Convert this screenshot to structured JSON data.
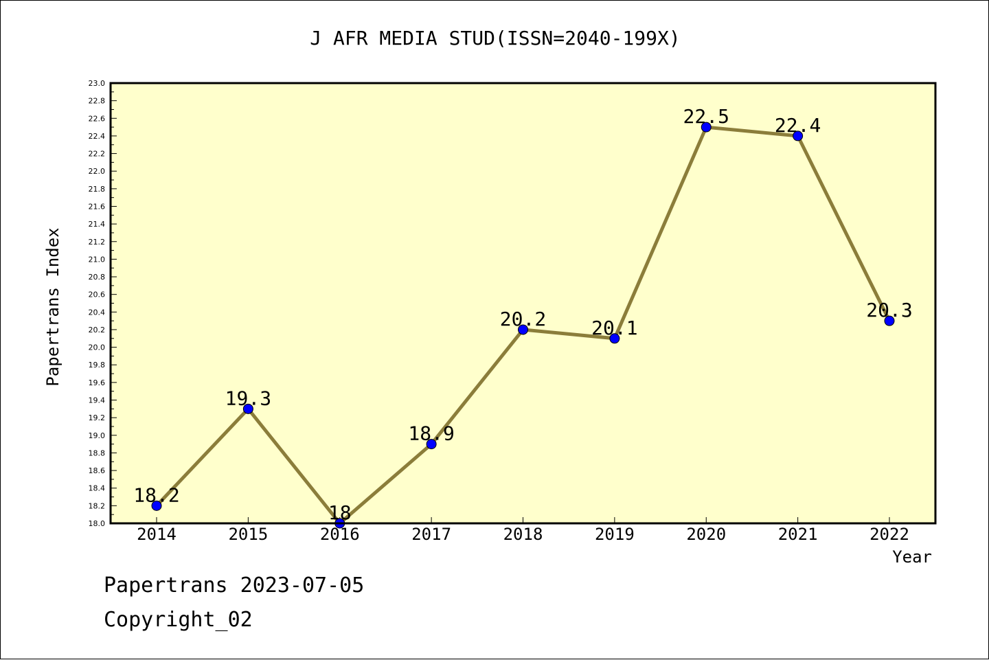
{
  "chart_data": {
    "type": "line",
    "title": "J AFR MEDIA STUD(ISSN=2040-199X)",
    "xlabel": "Year",
    "ylabel": "Papertrans Index",
    "categories": [
      "2014",
      "2015",
      "2016",
      "2017",
      "2018",
      "2019",
      "2020",
      "2021",
      "2022"
    ],
    "values": [
      18.2,
      19.3,
      18.0,
      18.9,
      20.2,
      20.1,
      22.5,
      22.4,
      20.3
    ],
    "data_labels": [
      "18.2",
      "19.3",
      "18",
      "18.9",
      "20.2",
      "20.1",
      "22.5",
      "22.4",
      "20.3"
    ],
    "ylim": [
      18.0,
      23.0
    ],
    "y_ticks": [
      "18.0",
      "18.2",
      "18.4",
      "18.6",
      "18.8",
      "19.0",
      "19.2",
      "19.4",
      "19.6",
      "19.8",
      "20.0",
      "20.2",
      "20.4",
      "20.6",
      "20.8",
      "21.0",
      "21.2",
      "21.4",
      "21.6",
      "21.8",
      "22.0",
      "22.2",
      "22.4",
      "22.6",
      "22.8",
      "23.0"
    ],
    "grid": false,
    "legend": "none",
    "colors": {
      "plot_background": "#ffffcc",
      "line": "#8b7d3a",
      "marker": "#0000ff"
    }
  },
  "footer": {
    "line1": "Papertrans 2023-07-05",
    "line2": "Copyright_02"
  }
}
